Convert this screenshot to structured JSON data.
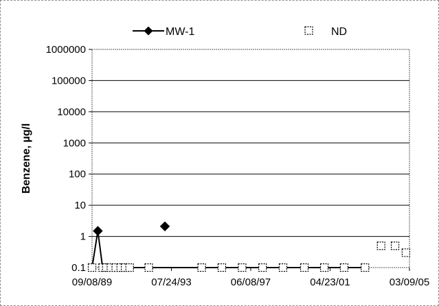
{
  "chart_data": {
    "type": "line",
    "ylabel": "Benzene, µg/l",
    "xlabel": "",
    "yscale": "log",
    "ylim": [
      0.1,
      1000000
    ],
    "yticks": [
      "0.1",
      "1",
      "10",
      "100",
      "1000",
      "10000",
      "100000",
      "1000000"
    ],
    "xlim": [
      "1989-09-08",
      "2005-03-09"
    ],
    "xticks": [
      "09/08/89",
      "07/24/93",
      "06/08/97",
      "04/23/01",
      "03/09/05"
    ],
    "grid": "horizontal",
    "legend_position": "top",
    "series": [
      {
        "name": "MW-1",
        "color": "#000000",
        "marker": "diamond-filled",
        "points": [
          {
            "x": "1989-09-08",
            "y": 0.1
          },
          {
            "x": "1989-12-20",
            "y": 1.5
          },
          {
            "x": "1990-03-15",
            "y": 0.1
          },
          {
            "x": "1990-05-20",
            "y": 0.1
          },
          {
            "x": "1990-08-10",
            "y": 0.1
          },
          {
            "x": "1990-11-05",
            "y": 0.1
          },
          {
            "x": "1991-02-01",
            "y": 0.1
          },
          {
            "x": "1991-04-20",
            "y": 0.1
          },
          {
            "x": "1991-07-10",
            "y": 0.1
          },
          {
            "x": "1992-06-15",
            "y": 0.1
          },
          {
            "x": "1995-01-15",
            "y": 0.1
          },
          {
            "x": "1996-01-10",
            "y": 0.1
          },
          {
            "x": "1997-01-05",
            "y": 0.1
          },
          {
            "x": "1998-01-05",
            "y": 0.1
          },
          {
            "x": "1999-01-05",
            "y": 0.1
          },
          {
            "x": "2000-01-20",
            "y": 0.1
          },
          {
            "x": "2001-01-10",
            "y": 0.1
          },
          {
            "x": "2001-12-30",
            "y": 0.1
          },
          {
            "x": "2003-01-05",
            "y": 0.1
          }
        ],
        "isolated_points": [
          {
            "x": "1993-03-30",
            "y": 2.1
          }
        ]
      },
      {
        "name": "ND",
        "color": "#000000",
        "marker": "square-open-dashed",
        "points": [
          {
            "x": "1989-09-08",
            "y": 0.1
          },
          {
            "x": "1990-03-15",
            "y": 0.1
          },
          {
            "x": "1990-05-20",
            "y": 0.1
          },
          {
            "x": "1990-08-10",
            "y": 0.1
          },
          {
            "x": "1990-11-05",
            "y": 0.1
          },
          {
            "x": "1991-02-01",
            "y": 0.1
          },
          {
            "x": "1991-04-20",
            "y": 0.1
          },
          {
            "x": "1991-07-10",
            "y": 0.1
          },
          {
            "x": "1992-06-15",
            "y": 0.1
          },
          {
            "x": "1995-01-15",
            "y": 0.1
          },
          {
            "x": "1996-01-10",
            "y": 0.1
          },
          {
            "x": "1997-01-05",
            "y": 0.1
          },
          {
            "x": "1998-01-05",
            "y": 0.1
          },
          {
            "x": "1999-01-05",
            "y": 0.1
          },
          {
            "x": "2000-01-20",
            "y": 0.1
          },
          {
            "x": "2001-01-10",
            "y": 0.1
          },
          {
            "x": "2001-12-30",
            "y": 0.1
          },
          {
            "x": "2003-01-05",
            "y": 0.1
          },
          {
            "x": "2003-10-20",
            "y": 0.5
          },
          {
            "x": "2004-06-25",
            "y": 0.5
          },
          {
            "x": "2005-01-05",
            "y": 0.3
          }
        ]
      }
    ]
  }
}
